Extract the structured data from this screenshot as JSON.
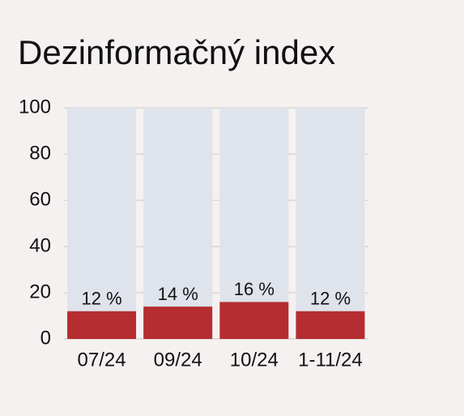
{
  "chart_data": {
    "type": "bar",
    "title": "Dezinformačný index",
    "categories": [
      "07/24",
      "09/24",
      "10/24",
      "1-11/24"
    ],
    "values": [
      12,
      14,
      16,
      12
    ],
    "value_labels": [
      "12 %",
      "14 %",
      "16 %",
      "12 %"
    ],
    "color": "#b52d30",
    "track_color": "#dfe3ec",
    "ylim": [
      0,
      100
    ],
    "yticks": [
      0,
      20,
      40,
      60,
      80,
      100
    ],
    "grid": true
  }
}
